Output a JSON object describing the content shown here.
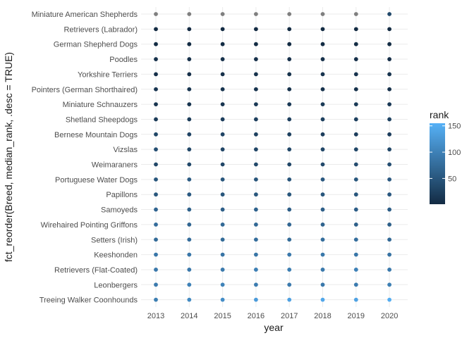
{
  "chart_data": {
    "type": "scatter",
    "xlabel": "year",
    "ylabel": "fct_reorder(Breed, median_rank, .desc = TRUE)",
    "x": [
      2013,
      2014,
      2015,
      2016,
      2017,
      2018,
      2019,
      2020
    ],
    "breeds": [
      "Miniature American Shepherds",
      "Retrievers (Labrador)",
      "German Shepherd Dogs",
      "Poodles",
      "Yorkshire Terriers",
      "Pointers (German Shorthaired)",
      "Miniature Schnauzers",
      "Shetland Sheepdogs",
      "Bernese Mountain Dogs",
      "Vizslas",
      "Weimaraners",
      "Portuguese Water Dogs",
      "Papillons",
      "Samoyeds",
      "Wirehaired Pointing Griffons",
      "Setters (Irish)",
      "Keeshonden",
      "Retrievers (Flat-Coated)",
      "Leonbergers",
      "Treeing Walker Coonhounds"
    ],
    "rank": [
      [
        null,
        null,
        null,
        null,
        null,
        null,
        null,
        35
      ],
      [
        1,
        1,
        1,
        1,
        1,
        1,
        1,
        1
      ],
      [
        2,
        2,
        2,
        2,
        2,
        2,
        3,
        3
      ],
      [
        8,
        7,
        8,
        7,
        7,
        7,
        6,
        5
      ],
      [
        6,
        6,
        7,
        9,
        9,
        10,
        10,
        10
      ],
      [
        13,
        12,
        11,
        11,
        9,
        9,
        9,
        8
      ],
      [
        12,
        11,
        12,
        17,
        17,
        18,
        18,
        17
      ],
      [
        19,
        20,
        22,
        24,
        24,
        25,
        25,
        27
      ],
      [
        32,
        29,
        30,
        26,
        25,
        22,
        22,
        22
      ],
      [
        41,
        33,
        31,
        31,
        33,
        32,
        32,
        32
      ],
      [
        33,
        34,
        32,
        34,
        32,
        35,
        39,
        40
      ],
      [
        50,
        56,
        50,
        49,
        48,
        52,
        51,
        53
      ],
      [
        51,
        54,
        50,
        51,
        50,
        50,
        50,
        52
      ],
      [
        67,
        63,
        60,
        64,
        59,
        60,
        59,
        59
      ],
      [
        76,
        68,
        72,
        71,
        69,
        65,
        62,
        61
      ],
      [
        74,
        76,
        74,
        77,
        74,
        77,
        78,
        71
      ],
      [
        87,
        87,
        85,
        86,
        90,
        89,
        87,
        83
      ],
      [
        90,
        90,
        92,
        98,
        96,
        91,
        100,
        91
      ],
      [
        92,
        100,
        102,
        94,
        92,
        90,
        93,
        97
      ],
      [
        96,
        110,
        114,
        130,
        137,
        144,
        138,
        150
      ]
    ],
    "missing_color": "#7f7f7f",
    "color_scale": {
      "low_value": 1,
      "high_value": 155,
      "low_color": "#132b43",
      "high_color": "#56b1f7",
      "breaks": [
        50,
        100,
        150
      ]
    },
    "legend": {
      "title": "rank",
      "labels": [
        "50",
        "100",
        "150"
      ],
      "position": "right"
    },
    "grid": true
  }
}
